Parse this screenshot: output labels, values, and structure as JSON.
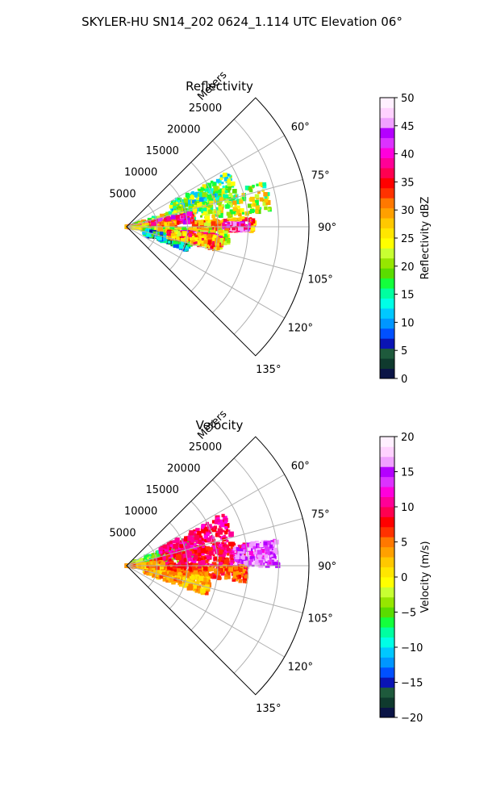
{
  "figure": {
    "title": "SKYLER-HU  SN14_202  0624_1.114 UTC Elevation 06°"
  },
  "chart_data": [
    {
      "type": "heatmap",
      "projection": "polar-sector",
      "title": "Reflectivity",
      "range_axis_label": "Meters",
      "range_ticks": [
        5000,
        10000,
        15000,
        20000,
        25000
      ],
      "range_tick_labels": [
        "5000",
        "10000",
        "15000",
        "20000",
        "25000"
      ],
      "range_max": 30000,
      "azimuth_range_deg": [
        45,
        135
      ],
      "azimuth_ticks_deg": [
        60,
        75,
        90,
        105,
        120,
        135
      ],
      "azimuth_tick_labels": [
        "60°",
        "75°",
        "90°",
        "105°",
        "120°",
        "135°"
      ],
      "grid": true,
      "colorbar": {
        "label": "Reflectivity dBZ",
        "range": [
          0,
          50
        ],
        "ticks": [
          0,
          5,
          10,
          15,
          20,
          25,
          30,
          35,
          40,
          45,
          50
        ],
        "tick_labels": [
          "0",
          "5",
          "10",
          "15",
          "20",
          "25",
          "30",
          "35",
          "40",
          "45",
          "50"
        ],
        "colors": [
          "#0a1446",
          "#0f3a2e",
          "#1e5a3c",
          "#0a14b4",
          "#0050ff",
          "#0096ff",
          "#00c8ff",
          "#00ffe6",
          "#00ffa0",
          "#14ff3c",
          "#5adc00",
          "#96e600",
          "#c8ff32",
          "#ffff00",
          "#ffe600",
          "#ffc800",
          "#ffa000",
          "#ff7800",
          "#ff3200",
          "#ff0000",
          "#ff0050",
          "#ff0096",
          "#ff00dc",
          "#dc32ff",
          "#b400ff",
          "#f0a0ff",
          "#ffd2ff",
          "#fff0ff"
        ]
      },
      "echo_regions": [
        {
          "az": [
            62,
            78
          ],
          "range": [
            8000,
            19000
          ],
          "value": 18
        },
        {
          "az": [
            72,
            84
          ],
          "range": [
            1000,
            24000
          ],
          "value": 22
        },
        {
          "az": [
            78,
            86
          ],
          "range": [
            3000,
            11000
          ],
          "value": 38
        },
        {
          "az": [
            84,
            92
          ],
          "range": [
            0,
            8000
          ],
          "value": 33
        },
        {
          "az": [
            86,
            92
          ],
          "range": [
            11000,
            21000
          ],
          "value": 30
        },
        {
          "az": [
            88,
            92
          ],
          "range": [
            16000,
            20000
          ],
          "value": 42
        },
        {
          "az": [
            92,
            100
          ],
          "range": [
            1000,
            17000
          ],
          "value": 24
        },
        {
          "az": [
            95,
            101
          ],
          "range": [
            9000,
            15000
          ],
          "value": 40
        },
        {
          "az": [
            100,
            112
          ],
          "range": [
            3000,
            11000
          ],
          "value": 12
        },
        {
          "az": [
            96,
            104
          ],
          "range": [
            7000,
            16000
          ],
          "value": 30
        }
      ]
    },
    {
      "type": "heatmap",
      "projection": "polar-sector",
      "title": "Velocity",
      "range_axis_label": "Meters",
      "range_ticks": [
        5000,
        10000,
        15000,
        20000,
        25000
      ],
      "range_tick_labels": [
        "5000",
        "10000",
        "15000",
        "20000",
        "25000"
      ],
      "range_max": 30000,
      "azimuth_range_deg": [
        45,
        135
      ],
      "azimuth_ticks_deg": [
        60,
        75,
        90,
        105,
        120,
        135
      ],
      "azimuth_tick_labels": [
        "60°",
        "75°",
        "90°",
        "105°",
        "120°",
        "135°"
      ],
      "grid": true,
      "colorbar": {
        "label": "Velocity (m/s)",
        "range": [
          -20,
          20
        ],
        "ticks": [
          -20,
          -15,
          -10,
          -5,
          0,
          5,
          10,
          15,
          20
        ],
        "tick_labels": [
          "−20",
          "−15",
          "−10",
          "−5",
          "0",
          "5",
          "10",
          "15",
          "20"
        ],
        "colors": [
          "#0a1446",
          "#0f3a2e",
          "#1e5a3c",
          "#0a14b4",
          "#0050ff",
          "#0096ff",
          "#00c8ff",
          "#00ffe6",
          "#00ffa0",
          "#14ff3c",
          "#5adc00",
          "#96e600",
          "#c8ff32",
          "#ffff00",
          "#ffe600",
          "#ffc800",
          "#ffa000",
          "#ff7800",
          "#ff3200",
          "#ff0000",
          "#ff0050",
          "#ff0096",
          "#ff00dc",
          "#dc32ff",
          "#b400ff",
          "#f0a0ff",
          "#ffd2ff",
          "#fff0ff"
        ]
      },
      "echo_regions": [
        {
          "az": [
            66,
            84
          ],
          "range": [
            1000,
            12000
          ],
          "value": -5
        },
        {
          "az": [
            62,
            80
          ],
          "range": [
            6000,
            18000
          ],
          "value": 10
        },
        {
          "az": [
            78,
            92
          ],
          "range": [
            4000,
            20000
          ],
          "value": 9
        },
        {
          "az": [
            80,
            90
          ],
          "range": [
            18000,
            25000
          ],
          "value": 15
        },
        {
          "az": [
            90,
            98
          ],
          "range": [
            2000,
            20000
          ],
          "value": 6
        },
        {
          "az": [
            98,
            110
          ],
          "range": [
            3000,
            14000
          ],
          "value": 3
        },
        {
          "az": [
            84,
            94
          ],
          "range": [
            0,
            6000
          ],
          "value": 4
        }
      ]
    }
  ]
}
